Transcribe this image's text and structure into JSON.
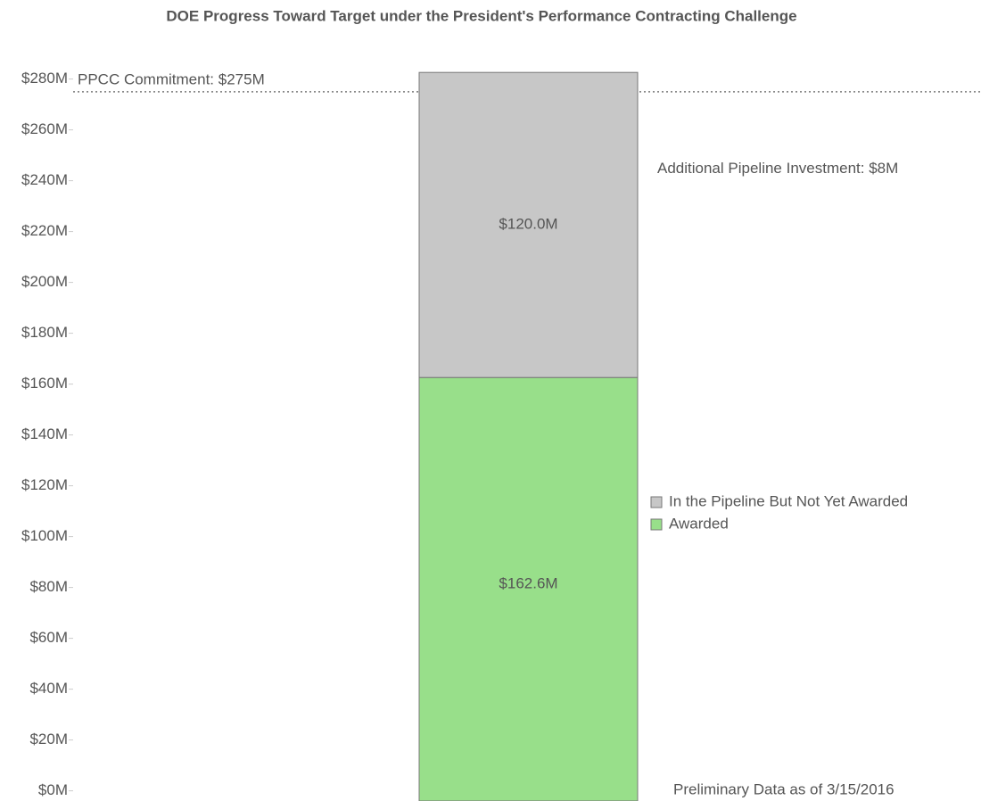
{
  "chart_data": {
    "type": "stacked-bar",
    "title": "DOE Progress Toward Target under the President's Performance Contracting Challenge",
    "categories": [
      null
    ],
    "series": [
      {
        "name": "Awarded",
        "color": "#98df8a",
        "values": [
          162.6
        ],
        "value_labels": [
          "$162.6M"
        ]
      },
      {
        "name": "In the Pipeline But Not Yet Awarded",
        "color": "#c7c7c7",
        "values": [
          120.0
        ],
        "value_labels": [
          "$120.0M"
        ]
      }
    ],
    "ylim": [
      -4,
      285
    ],
    "yticks": [
      {
        "value": 0,
        "label": "$0M"
      },
      {
        "value": 20,
        "label": "$20M"
      },
      {
        "value": 40,
        "label": "$40M"
      },
      {
        "value": 60,
        "label": "$60M"
      },
      {
        "value": 80,
        "label": "$80M"
      },
      {
        "value": 100,
        "label": "$100M"
      },
      {
        "value": 120,
        "label": "$120M"
      },
      {
        "value": 140,
        "label": "$140M"
      },
      {
        "value": 160,
        "label": "$160M"
      },
      {
        "value": 180,
        "label": "$180M"
      },
      {
        "value": 200,
        "label": "$200M"
      },
      {
        "value": 220,
        "label": "$220M"
      },
      {
        "value": 240,
        "label": "$240M"
      },
      {
        "value": 260,
        "label": "$260M"
      },
      {
        "value": 280,
        "label": "$280M"
      }
    ],
    "reference_line": {
      "value": 275,
      "label": "PPCC Commitment: $275M"
    },
    "annotation": "Additional Pipeline Investment: $8M",
    "footnote": "Preliminary Data as of 3/15/2016",
    "legend": "right"
  }
}
